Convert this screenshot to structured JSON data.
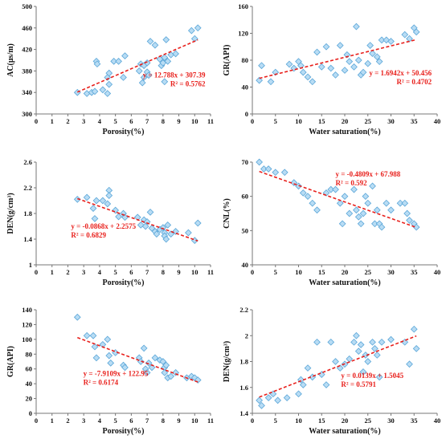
{
  "chart_data": [
    {
      "id": "ac-porosity",
      "type": "scatter",
      "xlabel": "Porosity(%)",
      "ylabel": "AC(μs/m)",
      "xlim": [
        0,
        11
      ],
      "ylim": [
        300,
        500
      ],
      "xticks": [
        0,
        1,
        2,
        3,
        4,
        5,
        6,
        7,
        8,
        9,
        10,
        11
      ],
      "yticks": [
        300,
        340,
        380,
        420,
        460,
        500
      ],
      "trendline": {
        "slope": 12.788,
        "intercept": 307.39
      },
      "equation": "y = 12.788x + 307.39",
      "r2": "R² = 0.5762",
      "points": [
        [
          2.6,
          340
        ],
        [
          3.2,
          338
        ],
        [
          3.5,
          340
        ],
        [
          3.7,
          342
        ],
        [
          3.8,
          398
        ],
        [
          3.85,
          393
        ],
        [
          4.2,
          345
        ],
        [
          4.5,
          338
        ],
        [
          4.5,
          368
        ],
        [
          4.6,
          376
        ],
        [
          4.6,
          355
        ],
        [
          4.9,
          398
        ],
        [
          5.2,
          398
        ],
        [
          5.5,
          368
        ],
        [
          5.6,
          408
        ],
        [
          6.5,
          380
        ],
        [
          6.6,
          393
        ],
        [
          6.7,
          358
        ],
        [
          6.8,
          368
        ],
        [
          6.8,
          390
        ],
        [
          7.0,
          378
        ],
        [
          7.0,
          395
        ],
        [
          7.1,
          372
        ],
        [
          7.2,
          435
        ],
        [
          7.5,
          428
        ],
        [
          7.8,
          402
        ],
        [
          7.9,
          390
        ],
        [
          8.0,
          395
        ],
        [
          8.1,
          405
        ],
        [
          8.1,
          360
        ],
        [
          8.2,
          438
        ],
        [
          8.3,
          398
        ],
        [
          8.5,
          410
        ],
        [
          8.8,
          412
        ],
        [
          9.8,
          455
        ],
        [
          10.0,
          440
        ],
        [
          10.2,
          460
        ]
      ]
    },
    {
      "id": "gr-saturation",
      "type": "scatter",
      "xlabel": "Water saturation(%)",
      "ylabel": "GR(API)",
      "xlim": [
        0,
        40
      ],
      "ylim": [
        0,
        160
      ],
      "xticks": [
        0,
        5,
        10,
        15,
        20,
        25,
        30,
        35,
        40
      ],
      "yticks": [
        0,
        40,
        80,
        120,
        160
      ],
      "trendline": {
        "slope": 1.6942,
        "intercept": 50.456
      },
      "equation": "y = 1.6942x + 50.456",
      "r2": "R² = 0.4702",
      "points": [
        [
          1.5,
          50
        ],
        [
          2,
          72
        ],
        [
          4,
          48
        ],
        [
          5,
          62
        ],
        [
          8,
          74
        ],
        [
          9,
          68
        ],
        [
          10,
          78
        ],
        [
          10.5,
          72
        ],
        [
          11,
          62
        ],
        [
          12,
          55
        ],
        [
          13,
          48
        ],
        [
          14,
          92
        ],
        [
          15,
          70
        ],
        [
          16,
          100
        ],
        [
          17,
          68
        ],
        [
          18,
          58
        ],
        [
          19,
          102
        ],
        [
          20,
          65
        ],
        [
          20.5,
          88
        ],
        [
          21,
          78
        ],
        [
          22,
          70
        ],
        [
          22.5,
          130
        ],
        [
          23,
          80
        ],
        [
          23.5,
          58
        ],
        [
          24,
          62
        ],
        [
          25,
          75
        ],
        [
          25.5,
          102
        ],
        [
          26,
          90
        ],
        [
          27,
          85
        ],
        [
          27.5,
          78
        ],
        [
          28,
          110
        ],
        [
          29,
          110
        ],
        [
          30,
          108
        ],
        [
          33,
          118
        ],
        [
          34,
          112
        ],
        [
          35,
          128
        ],
        [
          35.5,
          122
        ]
      ]
    },
    {
      "id": "den-porosity",
      "type": "scatter",
      "xlabel": "Porosity(%)",
      "ylabel": "DEN(g/cm³)",
      "xlim": [
        0,
        11
      ],
      "ylim": [
        1,
        2.6
      ],
      "xticks": [
        0,
        1,
        2,
        3,
        4,
        5,
        6,
        7,
        8,
        9,
        10,
        11
      ],
      "yticks": [
        1,
        1.4,
        1.8,
        2.2,
        2.6
      ],
      "trendline": {
        "slope": -0.0868,
        "intercept": 2.2575
      },
      "equation": "y = -0.0868x + 2.2575",
      "r2": "R² = 0.6829",
      "points": [
        [
          2.6,
          2.02
        ],
        [
          3.2,
          2.05
        ],
        [
          3.6,
          1.88
        ],
        [
          3.7,
          1.72
        ],
        [
          3.8,
          2.0
        ],
        [
          4.2,
          2.0
        ],
        [
          4.5,
          1.95
        ],
        [
          4.6,
          2.16
        ],
        [
          4.6,
          2.08
        ],
        [
          5.0,
          1.85
        ],
        [
          5.2,
          1.75
        ],
        [
          5.5,
          1.8
        ],
        [
          5.6,
          1.74
        ],
        [
          6.4,
          1.74
        ],
        [
          6.6,
          1.62
        ],
        [
          6.8,
          1.7
        ],
        [
          6.9,
          1.6
        ],
        [
          7.0,
          1.67
        ],
        [
          7.2,
          1.82
        ],
        [
          7.3,
          1.57
        ],
        [
          7.5,
          1.52
        ],
        [
          7.6,
          1.48
        ],
        [
          7.8,
          1.55
        ],
        [
          8.0,
          1.58
        ],
        [
          8.1,
          1.5
        ],
        [
          8.1,
          1.45
        ],
        [
          8.2,
          1.4
        ],
        [
          8.3,
          1.62
        ],
        [
          8.5,
          1.48
        ],
        [
          8.8,
          1.52
        ],
        [
          9.6,
          1.5
        ],
        [
          10.0,
          1.38
        ],
        [
          10.2,
          1.65
        ]
      ]
    },
    {
      "id": "cnl-saturation",
      "type": "scatter",
      "xlabel": "Water saturation(%)",
      "ylabel": "CNL(%)",
      "xlim": [
        0,
        40
      ],
      "ylim": [
        40,
        70
      ],
      "xticks": [
        0,
        5,
        10,
        15,
        20,
        25,
        30,
        35,
        40
      ],
      "yticks": [
        40,
        50,
        60,
        70
      ],
      "trendline": {
        "slope": -0.4809,
        "intercept": 67.988
      },
      "equation": "y = -0.4809x + 67.988",
      "r2": "R² = 0.592",
      "points": [
        [
          1.5,
          70
        ],
        [
          2.5,
          68
        ],
        [
          3.5,
          68
        ],
        [
          5,
          67
        ],
        [
          7,
          67
        ],
        [
          9,
          64
        ],
        [
          10,
          63
        ],
        [
          11,
          61
        ],
        [
          12,
          60
        ],
        [
          13,
          58
        ],
        [
          14,
          56
        ],
        [
          16,
          61
        ],
        [
          17,
          62
        ],
        [
          18,
          62
        ],
        [
          19,
          58
        ],
        [
          19.5,
          52
        ],
        [
          20,
          60
        ],
        [
          21,
          55
        ],
        [
          22,
          62
        ],
        [
          22.5,
          56
        ],
        [
          23,
          54
        ],
        [
          23.5,
          52
        ],
        [
          24,
          55
        ],
        [
          24.5,
          60
        ],
        [
          25,
          58
        ],
        [
          26,
          63
        ],
        [
          26.5,
          52
        ],
        [
          27,
          56
        ],
        [
          27.5,
          52
        ],
        [
          28,
          51
        ],
        [
          29,
          58
        ],
        [
          30,
          56
        ],
        [
          32,
          58
        ],
        [
          33,
          58
        ],
        [
          33.5,
          55
        ],
        [
          34,
          53
        ],
        [
          35,
          52
        ],
        [
          35.5,
          51
        ]
      ]
    },
    {
      "id": "gr-porosity",
      "type": "scatter",
      "xlabel": "Porosity(%)",
      "ylabel": "GR(API)",
      "xlim": [
        0,
        11
      ],
      "ylim": [
        0,
        140
      ],
      "xticks": [
        0,
        1,
        2,
        3,
        4,
        5,
        6,
        7,
        8,
        9,
        10,
        11
      ],
      "yticks": [
        0,
        20,
        40,
        60,
        80,
        100,
        120,
        140
      ],
      "trendline": {
        "slope": -7.9109,
        "intercept": 122.95
      },
      "equation": "y = -7.9109x + 122.95",
      "r2": "R² = 0.6174",
      "points": [
        [
          2.6,
          130
        ],
        [
          3.2,
          105
        ],
        [
          3.6,
          105
        ],
        [
          3.7,
          90
        ],
        [
          3.8,
          75
        ],
        [
          4.2,
          93
        ],
        [
          4.5,
          100
        ],
        [
          4.6,
          78
        ],
        [
          4.7,
          68
        ],
        [
          5.0,
          82
        ],
        [
          5.5,
          65
        ],
        [
          5.6,
          62
        ],
        [
          6.5,
          75
        ],
        [
          6.6,
          70
        ],
        [
          6.8,
          88
        ],
        [
          6.9,
          60
        ],
        [
          7.0,
          55
        ],
        [
          7.1,
          68
        ],
        [
          7.3,
          62
        ],
        [
          7.5,
          75
        ],
        [
          7.8,
          72
        ],
        [
          8.0,
          70
        ],
        [
          8.1,
          62
        ],
        [
          8.1,
          55
        ],
        [
          8.2,
          65
        ],
        [
          8.3,
          48
        ],
        [
          8.5,
          50
        ],
        [
          8.8,
          55
        ],
        [
          9.5,
          48
        ],
        [
          9.8,
          50
        ],
        [
          10.0,
          48
        ],
        [
          10.2,
          45
        ]
      ]
    },
    {
      "id": "den-saturation",
      "type": "scatter",
      "xlabel": "Water saturation(%)",
      "ylabel": "DEN(g/cm³)",
      "xlim": [
        0,
        40
      ],
      "ylim": [
        1.4,
        2.2
      ],
      "xticks": [
        0,
        5,
        10,
        15,
        20,
        25,
        30,
        35,
        40
      ],
      "yticks": [
        1.4,
        1.6,
        1.8,
        2,
        2.2
      ],
      "trendline": {
        "slope": 0.0139,
        "intercept": 1.5045
      },
      "equation": "y = 0.0139x + 1.5045",
      "r2": "R² = 0.5791",
      "points": [
        [
          1.5,
          1.5
        ],
        [
          2.0,
          1.46
        ],
        [
          3.5,
          1.52
        ],
        [
          4.5,
          1.55
        ],
        [
          5.5,
          1.5
        ],
        [
          7.5,
          1.52
        ],
        [
          10,
          1.55
        ],
        [
          10.5,
          1.66
        ],
        [
          11,
          1.62
        ],
        [
          12,
          1.75
        ],
        [
          13,
          1.68
        ],
        [
          14,
          1.95
        ],
        [
          15,
          1.7
        ],
        [
          16,
          1.62
        ],
        [
          17,
          1.95
        ],
        [
          18,
          1.8
        ],
        [
          19,
          1.75
        ],
        [
          20,
          1.78
        ],
        [
          21,
          1.82
        ],
        [
          22,
          1.95
        ],
        [
          22.5,
          2.0
        ],
        [
          23,
          1.88
        ],
        [
          23.5,
          1.93
        ],
        [
          24,
          1.72
        ],
        [
          24.5,
          1.85
        ],
        [
          25,
          1.8
        ],
        [
          26,
          1.95
        ],
        [
          26.5,
          1.9
        ],
        [
          27,
          1.85
        ],
        [
          27.5,
          1.68
        ],
        [
          28,
          1.95
        ],
        [
          30,
          1.97
        ],
        [
          33,
          1.95
        ],
        [
          34,
          1.78
        ],
        [
          35,
          2.05
        ],
        [
          35.5,
          1.9
        ]
      ]
    }
  ]
}
